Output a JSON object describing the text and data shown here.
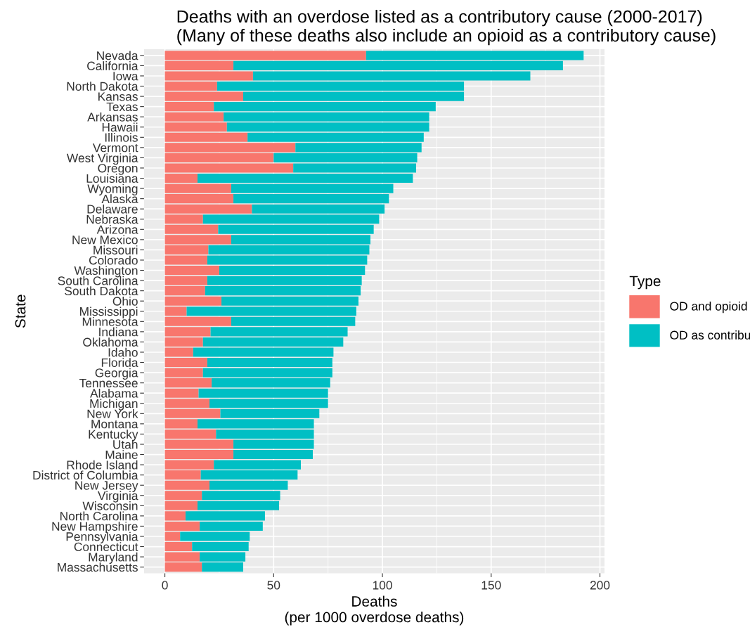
{
  "chart_data": {
    "type": "bar",
    "orientation": "horizontal",
    "stacked": true,
    "title": "Deaths with an overdose listed as a contributory cause (2000-2017)\n(Many of these deaths also include an opioid as a contributory cause)",
    "xlabel": "Deaths\n(per 1000 overdose deaths)",
    "ylabel": "State",
    "legend_title": "Type",
    "categories": [
      "Nevada",
      "California",
      "Iowa",
      "North Dakota",
      "Kansas",
      "Texas",
      "Arkansas",
      "Hawaii",
      "Illinois",
      "Vermont",
      "West Virginia",
      "Oregon",
      "Louisiana",
      "Wyoming",
      "Alaska",
      "Delaware",
      "Nebraska",
      "Arizona",
      "New Mexico",
      "Missouri",
      "Colorado",
      "Washington",
      "South Carolina",
      "South Dakota",
      "Ohio",
      "Mississippi",
      "Minnesota",
      "Indiana",
      "Oklahoma",
      "Idaho",
      "Florida",
      "Georgia",
      "Tennessee",
      "Alabama",
      "Michigan",
      "New York",
      "Montana",
      "Kentucky",
      "Utah",
      "Maine",
      "Rhode Island",
      "District of Columbia",
      "New Jersey",
      "Virginia",
      "Wisconsin",
      "North Carolina",
      "New Hampshire",
      "Pennsylvania",
      "Connecticut",
      "Maryland",
      "Massachusetts"
    ],
    "series": [
      {
        "name": "OD and opioid",
        "color": "#f8766d",
        "values": [
          92.5,
          31.5,
          40.5,
          24,
          36,
          22.5,
          27,
          28.5,
          38,
          60,
          50,
          59,
          15,
          30.5,
          31.5,
          40,
          17.5,
          24.5,
          30.5,
          20,
          19.5,
          25,
          19.5,
          18.5,
          26,
          10,
          30.5,
          21,
          17.5,
          13,
          19.5,
          17.5,
          21.5,
          15.5,
          20.5,
          25.5,
          15,
          23.5,
          31.5,
          31.5,
          22.5,
          16.5,
          20.5,
          17,
          15,
          9.5,
          16,
          7,
          12.5,
          16,
          17
        ]
      },
      {
        "name": "OD as contribu",
        "color": "#00bfc4",
        "values": [
          100,
          151.5,
          127.5,
          113.5,
          101.5,
          102,
          94.5,
          93,
          81,
          58,
          66,
          56.5,
          99,
          74.5,
          71.5,
          61,
          81,
          71.5,
          64,
          74,
          73.5,
          67,
          71,
          71.5,
          63,
          78,
          57,
          63,
          64.5,
          64.5,
          57.5,
          59.5,
          54.5,
          59.5,
          54.5,
          45.5,
          53.5,
          45,
          37,
          36.5,
          40,
          44.5,
          36,
          36,
          37.5,
          36.5,
          29,
          32,
          26,
          21,
          19
        ]
      }
    ],
    "xlim": [
      -9.6,
      202.1
    ],
    "xticks": [
      0,
      50,
      100,
      150,
      200
    ],
    "grid": true,
    "legend": "right"
  }
}
